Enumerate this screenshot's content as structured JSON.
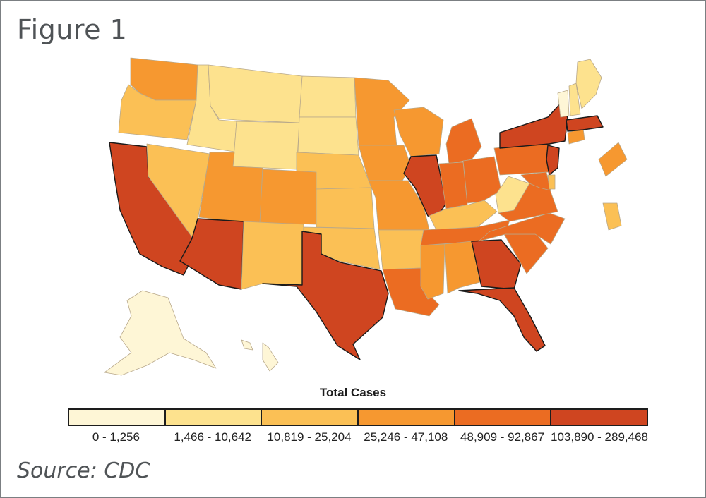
{
  "figure_title": "Figure 1",
  "source": "Source: CDC",
  "legend": {
    "title": "Total Cases",
    "bins": [
      {
        "label": "0 - 1,256",
        "color": "#fef6d6"
      },
      {
        "label": "1,466 - 10,642",
        "color": "#fde28e"
      },
      {
        "label": "10,819 - 25,204",
        "color": "#fbc055"
      },
      {
        "label": "25,246 - 47,108",
        "color": "#f69830"
      },
      {
        "label": "48,909 - 92,867",
        "color": "#eb6c22"
      },
      {
        "label": "103,890 - 289,468",
        "color": "#cf4520"
      }
    ]
  },
  "states": {
    "WA": 3,
    "OR": 2,
    "CA": 5,
    "NV": 2,
    "ID": 1,
    "MT": 1,
    "WY": 1,
    "UT": 3,
    "AZ": 5,
    "CO": 3,
    "NM": 2,
    "ND": 1,
    "SD": 1,
    "NE": 2,
    "KS": 2,
    "OK": 2,
    "TX": 5,
    "MN": 3,
    "IA": 3,
    "MO": 3,
    "AR": 2,
    "LA": 4,
    "WI": 3,
    "IL": 5,
    "MI": 4,
    "IN": 4,
    "OH": 4,
    "KY": 2,
    "TN": 4,
    "MS": 3,
    "AL": 3,
    "GA": 5,
    "FL": 5,
    "SC": 4,
    "NC": 4,
    "VA": 4,
    "WV": 1,
    "PA": 4,
    "NY": 5,
    "NJ": 5,
    "DE": 2,
    "MD": 4,
    "CT": 3,
    "RI": 3,
    "MA": 5,
    "VT": 0,
    "NH": 1,
    "ME": 1,
    "AK": 0,
    "HI": 0
  }
}
